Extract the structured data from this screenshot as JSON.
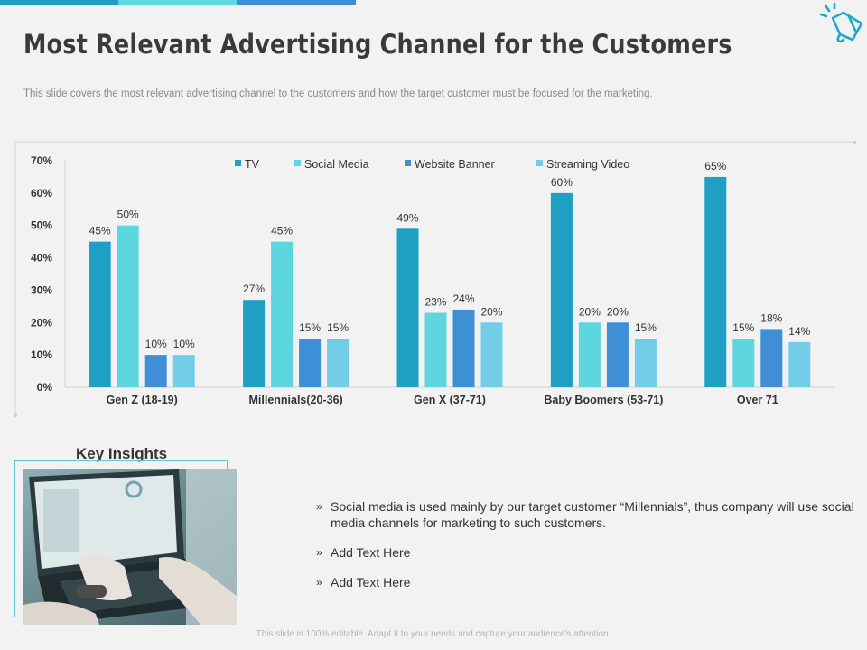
{
  "slide": {
    "title": "Most Relevant Advertising Channel for the Customers",
    "subtitle": "This slide covers the most relevant  advertising  channel to the customers and how the target customer must be focused for the marketing.",
    "accent_colors": [
      "#1f9fc4",
      "#5ed6dd",
      "#3e8fd6"
    ],
    "icon": "megaphone-icon",
    "footer": "This slide is 100% editable. Adapt it to your needs and capture your audience's attention."
  },
  "chart_data": {
    "type": "bar",
    "title": "",
    "xlabel": "",
    "ylabel": "",
    "ylim": [
      0,
      70
    ],
    "yticks": [
      "0%",
      "10%",
      "20%",
      "30%",
      "40%",
      "50%",
      "60%",
      "70%"
    ],
    "legend_position": "top-center",
    "categories": [
      "Gen Z (18-19)",
      "Millennials(20-36)",
      "Gen X (37-71)",
      "Baby Boomers (53-71)",
      "Over 71"
    ],
    "series": [
      {
        "name": "TV",
        "color": "#1f9fc4",
        "values": [
          45,
          27,
          49,
          60,
          65
        ],
        "labels": [
          "45%",
          "27%",
          "49%",
          "60%",
          "65%"
        ]
      },
      {
        "name": "Social Media",
        "color": "#5ed6dd",
        "values": [
          50,
          45,
          23,
          20,
          15
        ],
        "labels": [
          "50%",
          "45%",
          "23%",
          "20%",
          "15%"
        ]
      },
      {
        "name": "Website Banner",
        "color": "#3e8fd6",
        "values": [
          10,
          15,
          24,
          20,
          18
        ],
        "labels": [
          "10%",
          "15%",
          "24%",
          "20%",
          "18%"
        ]
      },
      {
        "name": "Streaming Video",
        "color": "#72cde6",
        "values": [
          10,
          15,
          20,
          15,
          14
        ],
        "labels": [
          "10%",
          "15%",
          "20%",
          "15%",
          "14%"
        ]
      }
    ]
  },
  "insights": {
    "heading": "Key Insights",
    "marker": "»",
    "bullets": [
      "Social media is used mainly by our target  customer “Millennials”, thus company will use social media channels for marketing to such customers.",
      "Add Text Here",
      "Add Text Here"
    ],
    "image": "laptop-typing-photo"
  }
}
